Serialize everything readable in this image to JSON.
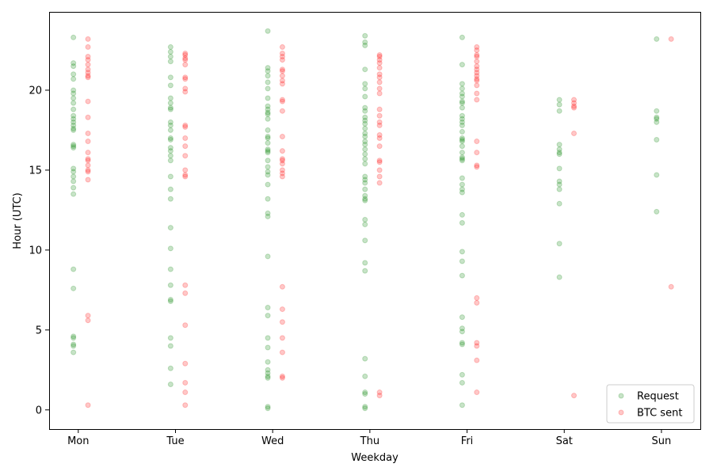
{
  "chart_data": {
    "type": "scatter",
    "title": "",
    "xlabel": "Weekday",
    "ylabel": "Hour (UTC)",
    "categories": [
      "Mon",
      "Tue",
      "Wed",
      "Thu",
      "Fri",
      "Sat",
      "Sun"
    ],
    "ylim": [
      -1.2,
      24.9
    ],
    "yticks": [
      0,
      5,
      10,
      15,
      20
    ],
    "legend": {
      "position": "bottom-right"
    },
    "series": [
      {
        "name": "Request",
        "color": "#008000",
        "offset": -0.05,
        "points": {
          "Mon": [
            23.3,
            21.7,
            21.5,
            21.0,
            20.7,
            20.0,
            19.8,
            19.5,
            19.2,
            18.8,
            18.4,
            18.2,
            18.0,
            17.8,
            17.6,
            17.5,
            16.6,
            16.5,
            16.4,
            15.1,
            14.9,
            14.6,
            14.3,
            13.9,
            13.5,
            8.8,
            7.6,
            4.6,
            4.5,
            4.1,
            4.0,
            3.6
          ],
          "Tue": [
            22.7,
            22.4,
            22.1,
            21.8,
            20.8,
            20.3,
            19.5,
            19.2,
            18.9,
            18.8,
            18.0,
            17.8,
            17.5,
            17.0,
            16.9,
            16.4,
            16.2,
            15.9,
            15.6,
            14.6,
            13.8,
            13.2,
            11.4,
            10.1,
            8.8,
            7.8,
            6.9,
            6.8,
            4.5,
            4.0,
            2.6,
            1.6
          ],
          "Wed": [
            23.7,
            21.4,
            21.2,
            20.9,
            20.5,
            20.1,
            19.5,
            19.0,
            18.8,
            18.6,
            18.5,
            18.2,
            17.5,
            17.1,
            17.0,
            16.7,
            16.3,
            16.2,
            16.1,
            15.6,
            15.2,
            14.9,
            14.7,
            14.1,
            13.2,
            12.3,
            12.1,
            9.6,
            6.4,
            5.9,
            4.5,
            3.9,
            3.0,
            2.5,
            2.3,
            2.1,
            2.0,
            0.2,
            0.1
          ],
          "Thu": [
            23.4,
            23.0,
            22.8,
            21.3,
            20.4,
            20.1,
            19.6,
            18.9,
            18.7,
            18.3,
            18.1,
            17.9,
            17.6,
            17.3,
            17.1,
            16.8,
            16.6,
            16.3,
            16.0,
            15.7,
            15.4,
            14.6,
            14.4,
            14.2,
            13.8,
            13.4,
            13.2,
            13.1,
            11.9,
            11.6,
            10.6,
            9.2,
            8.7,
            3.2,
            2.1,
            1.1,
            1.0,
            0.2,
            0.1
          ],
          "Fri": [
            23.3,
            21.6,
            20.4,
            20.1,
            19.8,
            19.6,
            19.3,
            19.2,
            18.9,
            18.4,
            18.2,
            18.0,
            17.8,
            17.4,
            17.0,
            16.9,
            16.8,
            16.5,
            16.1,
            15.8,
            15.7,
            15.6,
            14.5,
            14.1,
            13.8,
            13.6,
            12.2,
            11.7,
            9.9,
            9.3,
            8.4,
            5.8,
            5.1,
            4.9,
            4.2,
            4.1,
            2.2,
            1.7,
            0.3
          ],
          "Sat": [
            19.4,
            19.1,
            18.7,
            16.6,
            16.3,
            16.1,
            16.0,
            15.1,
            14.3,
            14.1,
            13.8,
            12.9,
            10.4,
            8.3
          ],
          "Sun": [
            23.2,
            18.7,
            18.3,
            18.2,
            18.0,
            16.9,
            14.7,
            12.4
          ]
        }
      },
      {
        "name": "BTC sent",
        "color": "#ff0000",
        "offset": 0.1,
        "points": {
          "Mon": [
            23.2,
            22.7,
            22.1,
            21.9,
            21.6,
            21.3,
            21.1,
            20.9,
            20.8,
            19.3,
            18.3,
            17.3,
            16.8,
            16.1,
            15.7,
            15.6,
            15.3,
            15.0,
            14.9,
            14.4,
            5.9,
            5.6,
            0.3
          ],
          "Tue": [
            22.3,
            22.2,
            22.0,
            21.9,
            21.6,
            20.8,
            20.7,
            20.1,
            19.9,
            17.8,
            17.7,
            17.0,
            16.5,
            15.9,
            15.0,
            14.7,
            14.6,
            7.8,
            7.3,
            5.3,
            2.9,
            1.7,
            1.1,
            0.3
          ],
          "Wed": [
            22.7,
            22.3,
            22.1,
            21.9,
            21.3,
            21.2,
            20.9,
            20.6,
            20.4,
            19.4,
            19.3,
            18.7,
            17.1,
            16.2,
            15.7,
            15.6,
            15.4,
            15.0,
            14.8,
            14.6,
            7.7,
            6.3,
            5.5,
            4.5,
            3.6,
            2.1,
            2.0
          ],
          "Thu": [
            22.2,
            22.1,
            21.9,
            21.7,
            21.4,
            21.0,
            20.8,
            20.5,
            20.1,
            19.8,
            18.8,
            18.4,
            18.0,
            17.8,
            17.2,
            17.0,
            16.5,
            15.6,
            15.5,
            15.0,
            14.6,
            14.2,
            1.1,
            0.9
          ],
          "Fri": [
            22.7,
            22.5,
            22.2,
            22.1,
            21.8,
            21.5,
            21.3,
            21.1,
            20.9,
            20.7,
            20.6,
            20.3,
            19.8,
            19.4,
            16.8,
            16.1,
            15.3,
            15.2,
            7.0,
            6.7,
            4.2,
            4.0,
            3.1,
            1.1
          ],
          "Sat": [
            19.4,
            19.2,
            19.0,
            18.9,
            17.3,
            0.9
          ],
          "Sun": [
            23.2,
            7.7
          ]
        }
      }
    ]
  }
}
